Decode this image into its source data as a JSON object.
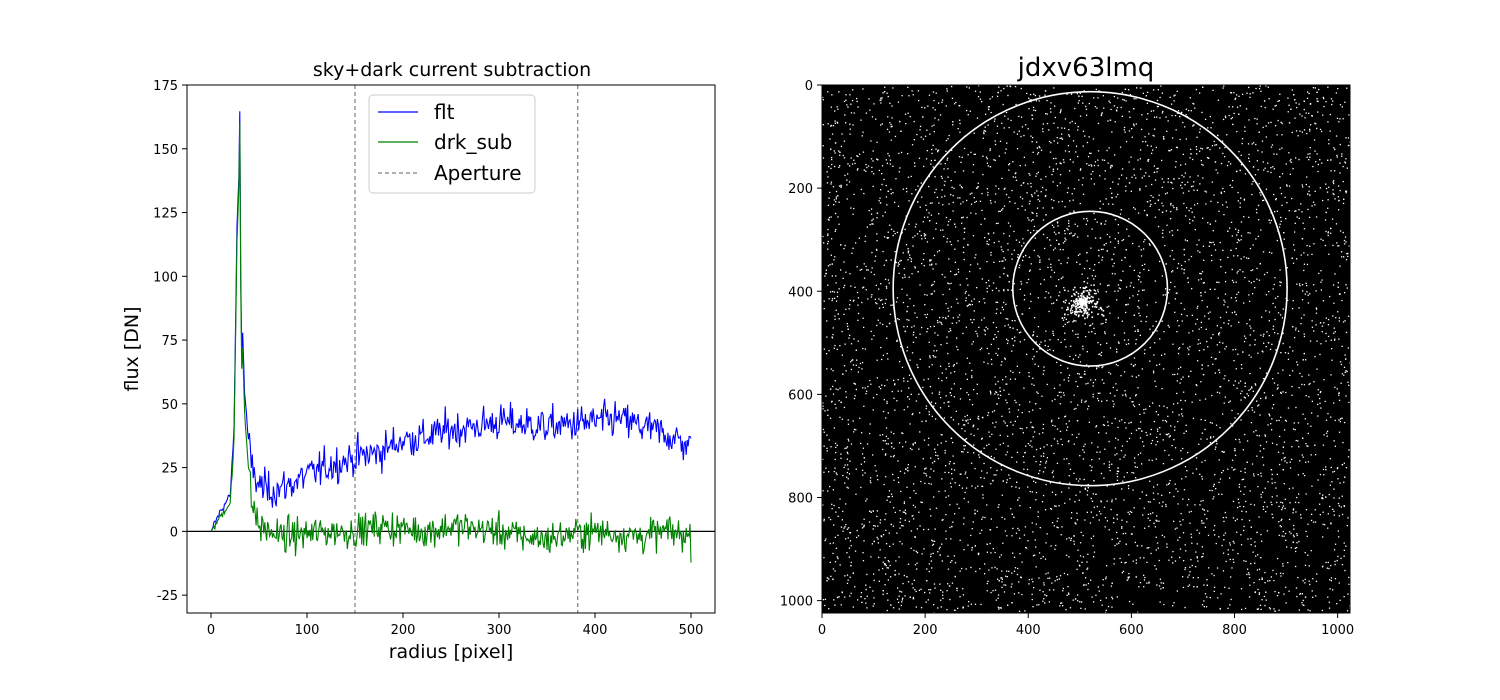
{
  "chart_data": [
    {
      "type": "line",
      "title": "sky+dark current subtraction",
      "xlabel": "radius [pixel]",
      "ylabel": "flux [DN]",
      "xlim": [
        -25,
        525
      ],
      "ylim": [
        -32,
        175
      ],
      "xticks": [
        0,
        100,
        200,
        300,
        400,
        500
      ],
      "yticks": [
        -25,
        0,
        25,
        50,
        75,
        100,
        125,
        150,
        175
      ],
      "legend": "top-center",
      "hline": 0,
      "vlines": [
        150,
        382
      ],
      "series": [
        {
          "name": "flt",
          "color": "#0000ff",
          "x": [
            0,
            5,
            10,
            15,
            20,
            24,
            27,
            29,
            30,
            31,
            32,
            33,
            35,
            38,
            42,
            50,
            60,
            75,
            100,
            125,
            150,
            175,
            200,
            225,
            250,
            275,
            300,
            325,
            350,
            375,
            400,
            425,
            450,
            475,
            500
          ],
          "values": [
            0,
            4,
            8,
            11,
            14,
            40,
            118,
            140,
            165,
            100,
            70,
            78,
            55,
            40,
            25,
            18,
            16,
            17,
            22,
            26,
            29,
            31,
            36,
            37,
            40,
            41,
            43,
            42,
            41,
            42,
            43,
            44,
            41,
            38,
            33
          ]
        },
        {
          "name": "drk_sub",
          "color": "#008000",
          "x": [
            0,
            5,
            10,
            15,
            20,
            24,
            27,
            29,
            30,
            31,
            32,
            33,
            35,
            38,
            42,
            50,
            60,
            75,
            100,
            125,
            150,
            175,
            200,
            225,
            250,
            275,
            300,
            325,
            350,
            375,
            400,
            425,
            450,
            475,
            500
          ],
          "values": [
            0,
            3,
            6,
            9,
            11,
            35,
            112,
            135,
            160,
            95,
            64,
            72,
            48,
            30,
            12,
            2,
            0,
            -2,
            -1,
            0,
            0,
            2,
            1,
            0,
            2,
            1,
            0,
            -2,
            -3,
            -1,
            0,
            -1,
            -2,
            0,
            -2
          ]
        },
        {
          "name": "Aperture",
          "color": "#808080",
          "style": "dashed"
        }
      ]
    },
    {
      "type": "heatmap",
      "title": "jdxv63lmq",
      "xlim": [
        0,
        1024
      ],
      "ylim": [
        1024,
        0
      ],
      "xticks": [
        0,
        200,
        400,
        600,
        800,
        1000
      ],
      "yticks": [
        0,
        200,
        400,
        600,
        800,
        1000
      ],
      "background": "#000000",
      "source_center": [
        505,
        420
      ],
      "circles": [
        {
          "cx": 520,
          "cy": 395,
          "r": 150,
          "color": "#ffffff"
        },
        {
          "cx": 520,
          "cy": 395,
          "r": 382,
          "color": "#ffffff"
        }
      ]
    }
  ]
}
